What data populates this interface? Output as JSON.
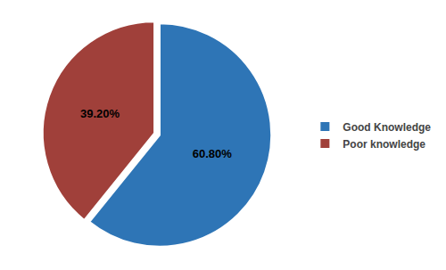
{
  "chart_data": {
    "type": "pie",
    "categories": [
      "Good Knowledge",
      "Poor knowledge"
    ],
    "values": [
      60.8,
      39.2
    ],
    "value_labels": [
      "60.80%",
      "39.20%"
    ],
    "colors": [
      "#2E75B6",
      "#A0403A"
    ],
    "data_labels": true,
    "legend": "right"
  }
}
